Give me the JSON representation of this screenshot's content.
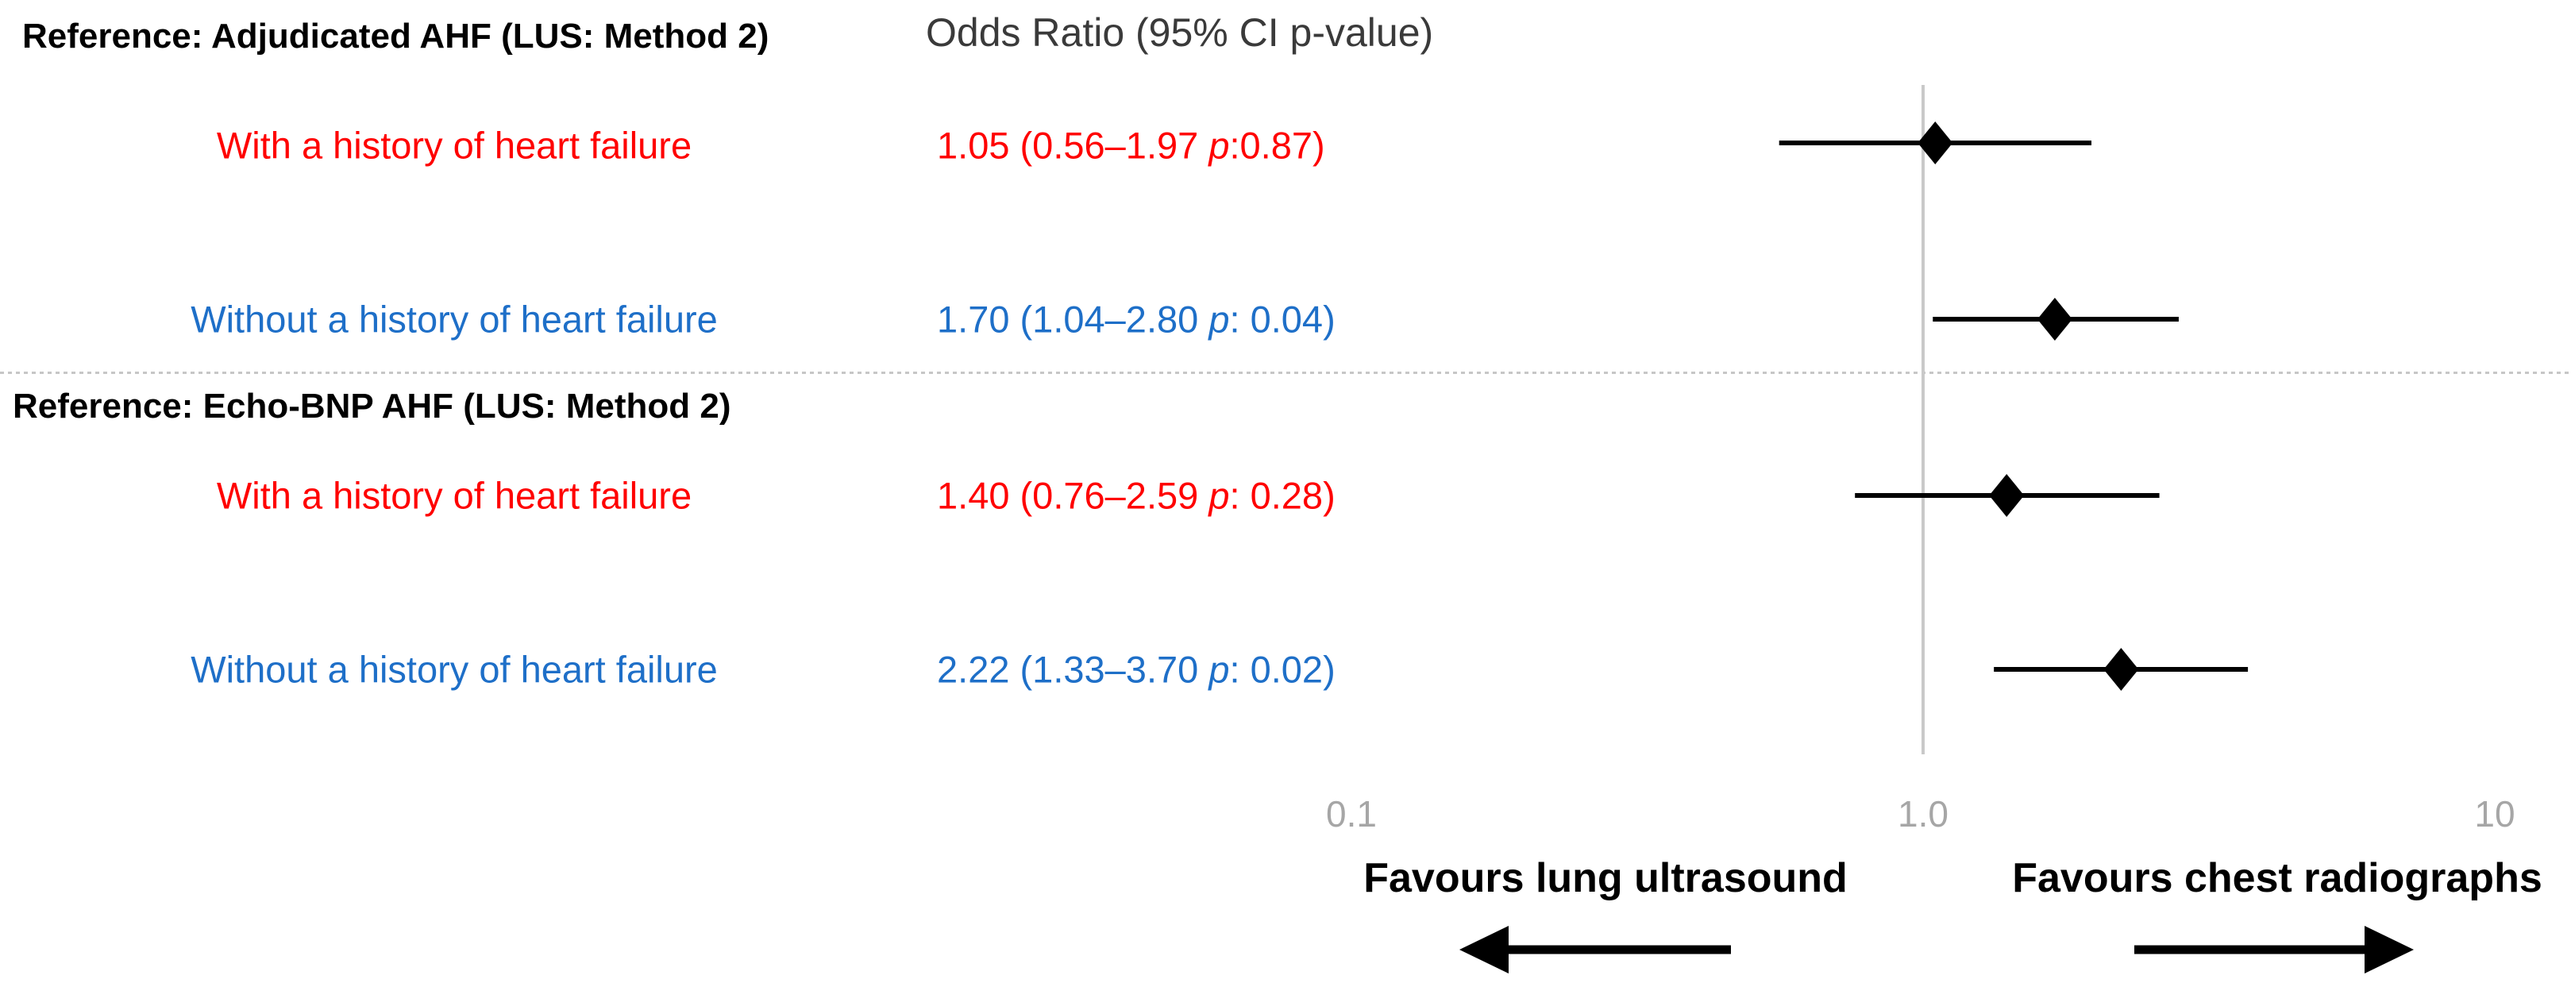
{
  "figure": {
    "background": "#FFFFFF"
  },
  "colors": {
    "red": "#FF0000",
    "blue": "#1E6FC8",
    "marker_black": "#000000",
    "reference_line_gray": "#C9C9C9",
    "divider_gray": "#C6C6C6",
    "axis_text_gray": "#A6A6A6",
    "or_header_text": "#3A3A3A"
  },
  "chart_data": {
    "type": "forest",
    "or_column_header": "Odds Ratio (95% CI p-value)",
    "x_axis": {
      "scale": "log10",
      "range": [
        0.1,
        10
      ],
      "tick_labels": [
        "0.1",
        "1.0",
        "10"
      ],
      "tick_values": [
        0.1,
        1.0,
        10
      ],
      "reference_line": 1.0,
      "grid": false
    },
    "marker": "diamond",
    "sections": [
      {
        "header": "Reference: Adjudicated AHF (LUS: Method 2)",
        "rows": [
          {
            "label": "With a history of heart failure",
            "color": "#FF0000",
            "or": 1.05,
            "ci_low": 0.56,
            "ci_high": 1.97,
            "p": 0.87,
            "or_text": "1.05 (0.56–1.97 ",
            "p_italic": "p",
            "p_text": ":0.87)"
          },
          {
            "label": "Without a history of heart failure",
            "color": "#1E6FC8",
            "or": 1.7,
            "ci_low": 1.04,
            "ci_high": 2.8,
            "p": 0.04,
            "or_text": "1.70 (1.04–2.80 ",
            "p_italic": "p",
            "p_text": ": 0.04)"
          }
        ]
      },
      {
        "header": "Reference: Echo-BNP AHF (LUS: Method 2)",
        "rows": [
          {
            "label": "With a history of heart failure",
            "color": "#FF0000",
            "or": 1.4,
            "ci_low": 0.76,
            "ci_high": 2.59,
            "p": 0.28,
            "or_text": "1.40 (0.76–2.59 ",
            "p_italic": "p",
            "p_text": ": 0.28)"
          },
          {
            "label": "Without a history of heart failure",
            "color": "#1E6FC8",
            "or": 2.22,
            "ci_low": 1.33,
            "ci_high": 3.7,
            "p": 0.02,
            "or_text": "2.22 (1.33–3.70 ",
            "p_italic": "p",
            "p_text": ": 0.02)"
          }
        ]
      }
    ],
    "favours": {
      "left": "Favours lung ultrasound",
      "right": "Favours chest radiographs"
    }
  }
}
